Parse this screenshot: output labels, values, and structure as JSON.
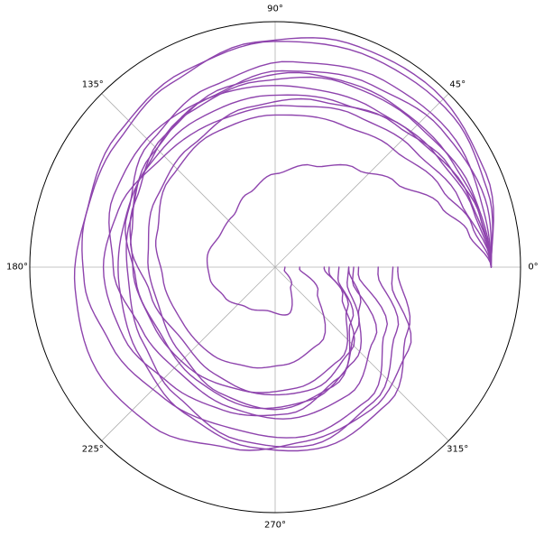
{
  "chart_data": {
    "type": "line",
    "projection": "polar",
    "title": "",
    "theta_tick_labels": [
      "0°",
      "45°",
      "90°",
      "135°",
      "180°",
      "225°",
      "270°",
      "315°"
    ],
    "theta_ticks_deg": [
      0,
      45,
      90,
      135,
      180,
      225,
      270,
      315
    ],
    "radial_tick_labels_visible": false,
    "grid": true,
    "legend": "none",
    "series_color": "#8e44ad",
    "series_style": "many closed-ish spiral loops starting near angle 0°, sweeping counter-clockwise through 90°, 180°, 270° and returning toward the 0° axis",
    "series": [
      {
        "values": [
          [
            0,
            0.88
          ],
          [
            10,
            0.8
          ],
          [
            20,
            0.72
          ],
          [
            35,
            0.6
          ],
          [
            50,
            0.52
          ],
          [
            70,
            0.44
          ],
          [
            90,
            0.38
          ],
          [
            110,
            0.32
          ],
          [
            130,
            0.27
          ],
          [
            150,
            0.26
          ],
          [
            170,
            0.28
          ],
          [
            190,
            0.27
          ],
          [
            210,
            0.24
          ],
          [
            235,
            0.2
          ],
          [
            260,
            0.18
          ],
          [
            285,
            0.2
          ],
          [
            310,
            0.1
          ],
          [
            340,
            0.04
          ]
        ]
      },
      {
        "values": [
          [
            0,
            0.88
          ],
          [
            12,
            0.82
          ],
          [
            25,
            0.75
          ],
          [
            45,
            0.68
          ],
          [
            65,
            0.64
          ],
          [
            90,
            0.62
          ],
          [
            115,
            0.6
          ],
          [
            140,
            0.56
          ],
          [
            165,
            0.5
          ],
          [
            185,
            0.46
          ],
          [
            210,
            0.44
          ],
          [
            235,
            0.44
          ],
          [
            255,
            0.42
          ],
          [
            275,
            0.4
          ],
          [
            300,
            0.36
          ],
          [
            330,
            0.2
          ],
          [
            355,
            0.1
          ]
        ]
      },
      {
        "values": [
          [
            0,
            0.88
          ],
          [
            15,
            0.86
          ],
          [
            30,
            0.84
          ],
          [
            55,
            0.82
          ],
          [
            80,
            0.8
          ],
          [
            105,
            0.76
          ],
          [
            130,
            0.7
          ],
          [
            155,
            0.63
          ],
          [
            180,
            0.58
          ],
          [
            205,
            0.55
          ],
          [
            230,
            0.54
          ],
          [
            255,
            0.52
          ],
          [
            280,
            0.5
          ],
          [
            305,
            0.46
          ],
          [
            330,
            0.34
          ],
          [
            355,
            0.22
          ]
        ]
      },
      {
        "values": [
          [
            0,
            0.88
          ],
          [
            15,
            0.88
          ],
          [
            35,
            0.9
          ],
          [
            60,
            0.88
          ],
          [
            85,
            0.84
          ],
          [
            110,
            0.78
          ],
          [
            135,
            0.72
          ],
          [
            160,
            0.64
          ],
          [
            185,
            0.57
          ],
          [
            210,
            0.54
          ],
          [
            235,
            0.56
          ],
          [
            260,
            0.58
          ],
          [
            285,
            0.56
          ],
          [
            310,
            0.5
          ],
          [
            335,
            0.38
          ],
          [
            358,
            0.3
          ]
        ]
      },
      {
        "values": [
          [
            0,
            0.88
          ],
          [
            20,
            0.92
          ],
          [
            40,
            0.95
          ],
          [
            65,
            0.94
          ],
          [
            90,
            0.92
          ],
          [
            115,
            0.88
          ],
          [
            140,
            0.84
          ],
          [
            165,
            0.8
          ],
          [
            185,
            0.78
          ],
          [
            205,
            0.74
          ],
          [
            230,
            0.7
          ],
          [
            255,
            0.68
          ],
          [
            280,
            0.7
          ],
          [
            305,
            0.66
          ],
          [
            330,
            0.52
          ],
          [
            355,
            0.34
          ]
        ]
      },
      {
        "values": [
          [
            0,
            0.88
          ],
          [
            18,
            0.9
          ],
          [
            40,
            0.88
          ],
          [
            62,
            0.84
          ],
          [
            88,
            0.8
          ],
          [
            112,
            0.74
          ],
          [
            138,
            0.68
          ],
          [
            162,
            0.62
          ],
          [
            186,
            0.6
          ],
          [
            210,
            0.62
          ],
          [
            232,
            0.66
          ],
          [
            258,
            0.72
          ],
          [
            282,
            0.74
          ],
          [
            306,
            0.68
          ],
          [
            332,
            0.56
          ],
          [
            356,
            0.42
          ]
        ]
      },
      {
        "values": [
          [
            0,
            0.88
          ],
          [
            22,
            0.86
          ],
          [
            45,
            0.82
          ],
          [
            70,
            0.8
          ],
          [
            95,
            0.76
          ],
          [
            120,
            0.72
          ],
          [
            145,
            0.66
          ],
          [
            168,
            0.6
          ],
          [
            192,
            0.52
          ],
          [
            218,
            0.48
          ],
          [
            240,
            0.5
          ],
          [
            262,
            0.52
          ],
          [
            288,
            0.52
          ],
          [
            312,
            0.46
          ],
          [
            336,
            0.3
          ],
          [
            358,
            0.2
          ]
        ]
      },
      {
        "values": [
          [
            0,
            0.88
          ],
          [
            20,
            0.8
          ],
          [
            40,
            0.74
          ],
          [
            62,
            0.7
          ],
          [
            85,
            0.66
          ],
          [
            110,
            0.64
          ],
          [
            135,
            0.64
          ],
          [
            160,
            0.68
          ],
          [
            180,
            0.7
          ],
          [
            205,
            0.68
          ],
          [
            228,
            0.64
          ],
          [
            250,
            0.62
          ],
          [
            275,
            0.6
          ],
          [
            300,
            0.52
          ],
          [
            325,
            0.38
          ],
          [
            350,
            0.26
          ]
        ]
      },
      {
        "values": [
          [
            0,
            0.88
          ],
          [
            16,
            0.84
          ],
          [
            34,
            0.8
          ],
          [
            58,
            0.76
          ],
          [
            82,
            0.74
          ],
          [
            106,
            0.74
          ],
          [
            132,
            0.74
          ],
          [
            156,
            0.72
          ],
          [
            180,
            0.66
          ],
          [
            205,
            0.6
          ],
          [
            228,
            0.58
          ],
          [
            252,
            0.6
          ],
          [
            276,
            0.62
          ],
          [
            300,
            0.6
          ],
          [
            324,
            0.5
          ],
          [
            350,
            0.32
          ]
        ]
      },
      {
        "values": [
          [
            0,
            0.88
          ],
          [
            24,
            0.94
          ],
          [
            48,
            0.97
          ],
          [
            72,
            0.96
          ],
          [
            95,
            0.92
          ],
          [
            120,
            0.86
          ],
          [
            142,
            0.82
          ],
          [
            164,
            0.8
          ],
          [
            186,
            0.82
          ],
          [
            210,
            0.84
          ],
          [
            232,
            0.82
          ],
          [
            256,
            0.76
          ],
          [
            280,
            0.72
          ],
          [
            304,
            0.7
          ],
          [
            328,
            0.64
          ],
          [
            352,
            0.48
          ]
        ]
      },
      {
        "values": [
          [
            0,
            0.88
          ],
          [
            14,
            0.86
          ],
          [
            30,
            0.82
          ],
          [
            50,
            0.76
          ],
          [
            75,
            0.7
          ],
          [
            100,
            0.66
          ],
          [
            125,
            0.6
          ],
          [
            150,
            0.56
          ],
          [
            175,
            0.52
          ],
          [
            198,
            0.5
          ],
          [
            222,
            0.52
          ],
          [
            246,
            0.56
          ],
          [
            270,
            0.58
          ],
          [
            296,
            0.54
          ],
          [
            322,
            0.42
          ],
          [
            348,
            0.3
          ]
        ]
      },
      {
        "values": [
          [
            0,
            0.88
          ],
          [
            20,
            0.84
          ],
          [
            44,
            0.78
          ],
          [
            68,
            0.72
          ],
          [
            92,
            0.7
          ],
          [
            118,
            0.68
          ],
          [
            142,
            0.66
          ],
          [
            166,
            0.64
          ],
          [
            190,
            0.64
          ],
          [
            214,
            0.66
          ],
          [
            238,
            0.7
          ],
          [
            262,
            0.74
          ],
          [
            286,
            0.76
          ],
          [
            310,
            0.72
          ],
          [
            334,
            0.6
          ],
          [
            358,
            0.5
          ]
        ]
      }
    ]
  }
}
